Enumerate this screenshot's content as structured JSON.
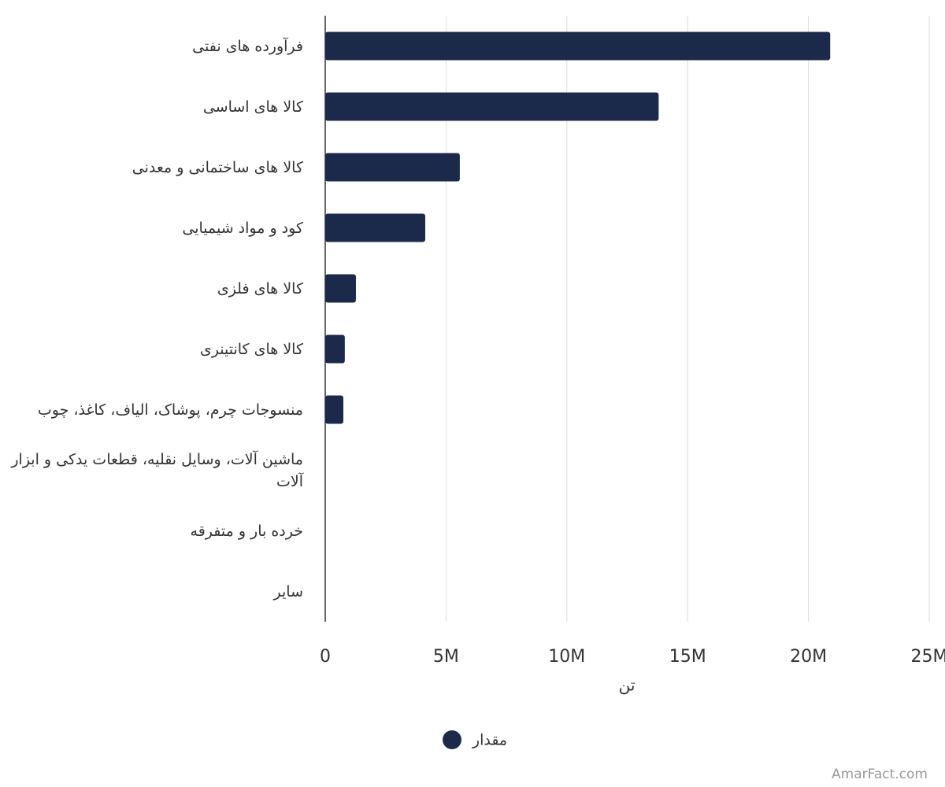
{
  "chart_data": {
    "type": "bar",
    "orientation": "horizontal",
    "categories": [
      "فرآورده های نفتی",
      "کالا های اساسی",
      "کالا های ساختمانی و معدنی",
      "کود و مواد شیمیایی",
      "کالا های فلزی",
      "کالا های کانتینری",
      "منسوجات چرم، پوشاک، الیاف، کاغذ، چوب",
      "ماشین آلات، وسایل نقلیه، قطعات یدکی و ابزار آلات",
      "خرده بار و متفرقه",
      "سایر"
    ],
    "series": [
      {
        "name": "مقدار",
        "color": "#1b2a4a",
        "values": [
          20900000,
          13800000,
          5570000,
          4140000,
          1270000,
          810000,
          750000,
          0,
          0,
          0
        ]
      }
    ],
    "xlabel": "تن",
    "xlim": [
      0,
      25000000
    ],
    "xticks": [
      0,
      {
        "value": 5000000,
        "label": "5M"
      },
      {
        "value": 10000000,
        "label": "10M"
      },
      {
        "value": 15000000,
        "label": "15M"
      },
      {
        "value": 20000000,
        "label": "20M"
      },
      {
        "value": 25000000,
        "label": "25M"
      }
    ],
    "grid": true,
    "legend": "bottom",
    "watermark": "AmarFact.com"
  }
}
